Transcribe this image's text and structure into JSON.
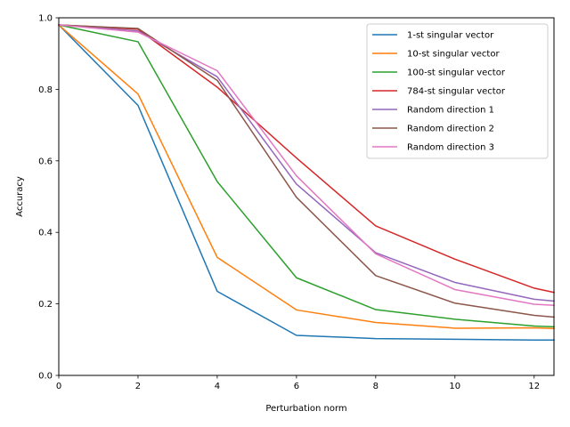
{
  "chart_data": {
    "type": "line",
    "title": "",
    "xlabel": "Perturbation norm",
    "ylabel": "Accuracy",
    "xlim": [
      0,
      12.5
    ],
    "ylim": [
      0,
      1.0
    ],
    "xticks": [
      0,
      2,
      4,
      6,
      8,
      10,
      12
    ],
    "yticks": [
      0.0,
      0.2,
      0.4,
      0.6,
      0.8,
      1.0
    ],
    "xtick_labels": [
      "0",
      "2",
      "4",
      "6",
      "8",
      "10",
      "12"
    ],
    "ytick_labels": [
      "0.0",
      "0.2",
      "0.4",
      "0.6",
      "0.8",
      "1.0"
    ],
    "grid": false,
    "legend_position": "top-right",
    "x": [
      0,
      2,
      4,
      6,
      8,
      10,
      12,
      12.5
    ],
    "series": [
      {
        "name": "1-st singular vector",
        "color": "#1f77b4",
        "values": [
          0.98,
          0.755,
          0.235,
          0.112,
          0.103,
          0.101,
          0.099,
          0.099
        ]
      },
      {
        "name": "10-st singular vector",
        "color": "#ff7f0e",
        "values": [
          0.98,
          0.787,
          0.33,
          0.183,
          0.148,
          0.132,
          0.133,
          0.131
        ]
      },
      {
        "name": "100-st singular vector",
        "color": "#2ca02c",
        "values": [
          0.98,
          0.933,
          0.542,
          0.273,
          0.184,
          0.157,
          0.138,
          0.136
        ]
      },
      {
        "name": "784-st singular vector",
        "color": "#d62728",
        "values": [
          0.98,
          0.968,
          0.806,
          0.608,
          0.418,
          0.325,
          0.244,
          0.232
        ]
      },
      {
        "name": "Random direction 1",
        "color": "#9467bd",
        "values": [
          0.98,
          0.963,
          0.835,
          0.535,
          0.343,
          0.26,
          0.213,
          0.208
        ]
      },
      {
        "name": "Random direction 2",
        "color": "#8c564b",
        "values": [
          0.98,
          0.97,
          0.825,
          0.498,
          0.279,
          0.202,
          0.168,
          0.163
        ]
      },
      {
        "name": "Random direction 3",
        "color": "#e377c2",
        "values": [
          0.98,
          0.96,
          0.852,
          0.558,
          0.34,
          0.24,
          0.199,
          0.196
        ]
      }
    ]
  }
}
